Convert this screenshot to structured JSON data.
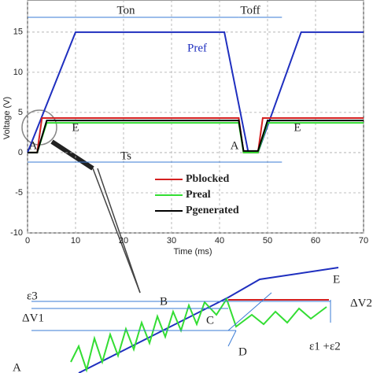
{
  "chart_data": {
    "type": "line",
    "x_label": "Time (ms)",
    "y_label": "Voltage (V)",
    "xlim": [
      0,
      70
    ],
    "ylim": [
      -10,
      19
    ],
    "xticks": [
      0,
      10,
      20,
      30,
      40,
      50,
      60,
      70
    ],
    "yticks": [
      -10,
      -5,
      0,
      5,
      10,
      15
    ],
    "grid": true,
    "series": [
      {
        "name": "Pref",
        "color": "#1f2fbf",
        "x": [
          0,
          10,
          41,
          46,
          48,
          57,
          70
        ],
        "values": [
          0,
          15,
          15,
          0,
          0,
          15,
          15
        ],
        "legend": false
      },
      {
        "name": "Pblocked",
        "color": "#d42020",
        "x": [
          0,
          2,
          3,
          44,
          45,
          48,
          49,
          70
        ],
        "values": [
          0,
          0,
          4.3,
          4.3,
          0,
          0,
          4.3,
          4.3
        ],
        "legend": true
      },
      {
        "name": "Preal",
        "color": "#33dd33",
        "x": [
          0,
          2,
          4,
          44,
          45,
          48,
          50,
          70
        ],
        "values": [
          0,
          0,
          3.7,
          3.7,
          0,
          0,
          3.7,
          3.7
        ],
        "legend": true
      },
      {
        "name": "Pgenerated",
        "color": "#000000",
        "x": [
          0,
          2,
          4,
          44,
          45,
          48,
          50,
          70
        ],
        "values": [
          0,
          0,
          4,
          4,
          0.2,
          0.2,
          4,
          4
        ],
        "legend": true
      }
    ],
    "annotations": [
      "Ton",
      "Toff",
      "Ts",
      "A",
      "E",
      "A",
      "E"
    ]
  },
  "inset": {
    "labels": [
      "ε3",
      "ΔV1",
      "B",
      "C",
      "D",
      "E",
      "ΔV2",
      "ε1 +ε2",
      "A"
    ]
  }
}
